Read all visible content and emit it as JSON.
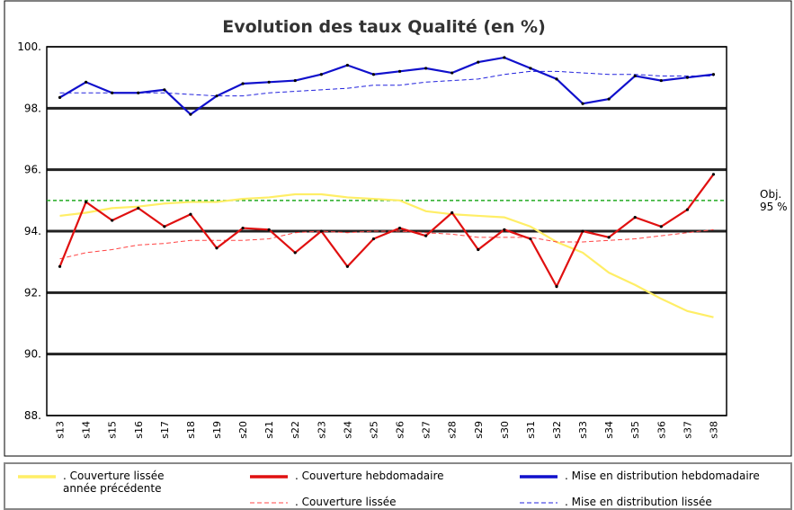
{
  "chart_data": {
    "type": "line",
    "title": "Evolution des taux Qualité (en %)",
    "categories": [
      "s13",
      "s14",
      "s15",
      "s16",
      "s17",
      "s18",
      "s19",
      "s20",
      "s21",
      "s22",
      "s23",
      "s24",
      "s25",
      "s26",
      "s27",
      "s28",
      "s29",
      "s30",
      "s31",
      "s32",
      "s33",
      "s34",
      "s35",
      "s36",
      "s37",
      "s38"
    ],
    "ylim": [
      88,
      100
    ],
    "yticks": [
      {
        "value": 88,
        "label": "88."
      },
      {
        "value": 90,
        "label": "90."
      },
      {
        "value": 92,
        "label": "92."
      },
      {
        "value": 94,
        "label": "94."
      },
      {
        "value": 96,
        "label": "96."
      },
      {
        "value": 98,
        "label": "98."
      },
      {
        "value": 100,
        "label": "100."
      }
    ],
    "grid": true,
    "legend": "bottom",
    "objective": {
      "value": 95,
      "label_lines": [
        "Obj.",
        "95 %"
      ],
      "color": "#22aa22"
    },
    "series": [
      {
        "name": ". Couverture lissée année précédente",
        "color": "#ffee66",
        "dashed": false,
        "markers": false,
        "values": [
          94.5,
          94.6,
          94.75,
          94.8,
          94.9,
          94.95,
          94.95,
          95.05,
          95.1,
          95.2,
          95.2,
          95.1,
          95.05,
          95.0,
          94.65,
          94.55,
          94.5,
          94.45,
          94.15,
          93.65,
          93.3,
          92.65,
          92.25,
          91.8,
          91.4,
          91.2
        ]
      },
      {
        "name": ". Couverture hebdomadaire",
        "color": "#e01010",
        "dashed": false,
        "markers": true,
        "values": [
          92.85,
          94.95,
          94.35,
          94.75,
          94.15,
          94.55,
          93.45,
          94.1,
          94.05,
          93.3,
          94.0,
          92.85,
          93.75,
          94.1,
          93.85,
          94.6,
          93.4,
          94.05,
          93.75,
          92.2,
          94.0,
          93.8,
          94.45,
          94.15,
          94.7,
          95.85
        ]
      },
      {
        "name": ". Mise en distribution hebdomadaire",
        "color": "#1010cc",
        "dashed": false,
        "markers": true,
        "values": [
          98.35,
          98.85,
          98.5,
          98.5,
          98.6,
          97.8,
          98.4,
          98.8,
          98.85,
          98.9,
          99.1,
          99.4,
          99.1,
          99.2,
          99.3,
          99.15,
          99.5,
          99.65,
          99.3,
          98.95,
          98.15,
          98.3,
          99.05,
          98.9,
          99.0,
          99.1
        ]
      },
      {
        "name": ". Couverture lissée",
        "color": "#ff4444",
        "dashed": true,
        "markers": false,
        "values": [
          93.1,
          93.3,
          93.4,
          93.55,
          93.6,
          93.7,
          93.7,
          93.7,
          93.75,
          93.95,
          94.0,
          93.95,
          94.0,
          94.0,
          93.95,
          93.9,
          93.8,
          93.8,
          93.8,
          93.65,
          93.65,
          93.7,
          93.75,
          93.85,
          93.95,
          94.05
        ]
      },
      {
        "name": ". Mise en distribution lissée",
        "color": "#2222dd",
        "dashed": true,
        "markers": false,
        "values": [
          98.5,
          98.5,
          98.5,
          98.5,
          98.5,
          98.45,
          98.4,
          98.4,
          98.5,
          98.55,
          98.6,
          98.65,
          98.75,
          98.75,
          98.85,
          98.9,
          98.95,
          99.1,
          99.2,
          99.2,
          99.15,
          99.1,
          99.1,
          99.05,
          99.05,
          99.05
        ]
      }
    ]
  }
}
